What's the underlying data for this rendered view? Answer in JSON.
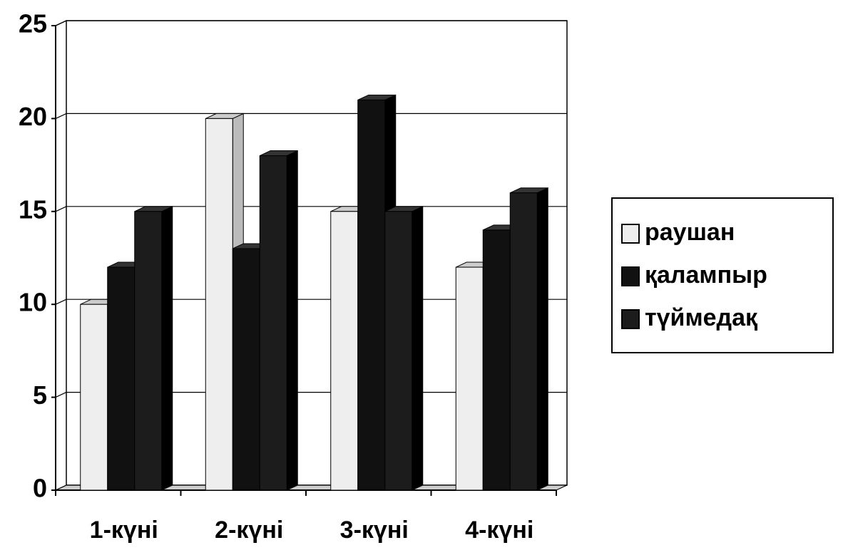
{
  "chart_data": {
    "type": "bar3d",
    "categories": [
      "1-күні",
      "2-күні",
      "3-күні",
      "4-күні"
    ],
    "series": [
      {
        "name": "раушан",
        "color": "#eeeeee",
        "values": [
          10,
          20,
          15,
          12
        ]
      },
      {
        "name": "қалампыр",
        "color": "#111111",
        "values": [
          12,
          13,
          21,
          14
        ]
      },
      {
        "name": "түймедақ",
        "color": "#1c1c1c",
        "values": [
          15,
          18,
          15,
          16
        ]
      }
    ],
    "ylim": [
      0,
      25
    ],
    "yticks": [
      0,
      5,
      10,
      15,
      20,
      25
    ],
    "grid": true,
    "legend": "right"
  }
}
